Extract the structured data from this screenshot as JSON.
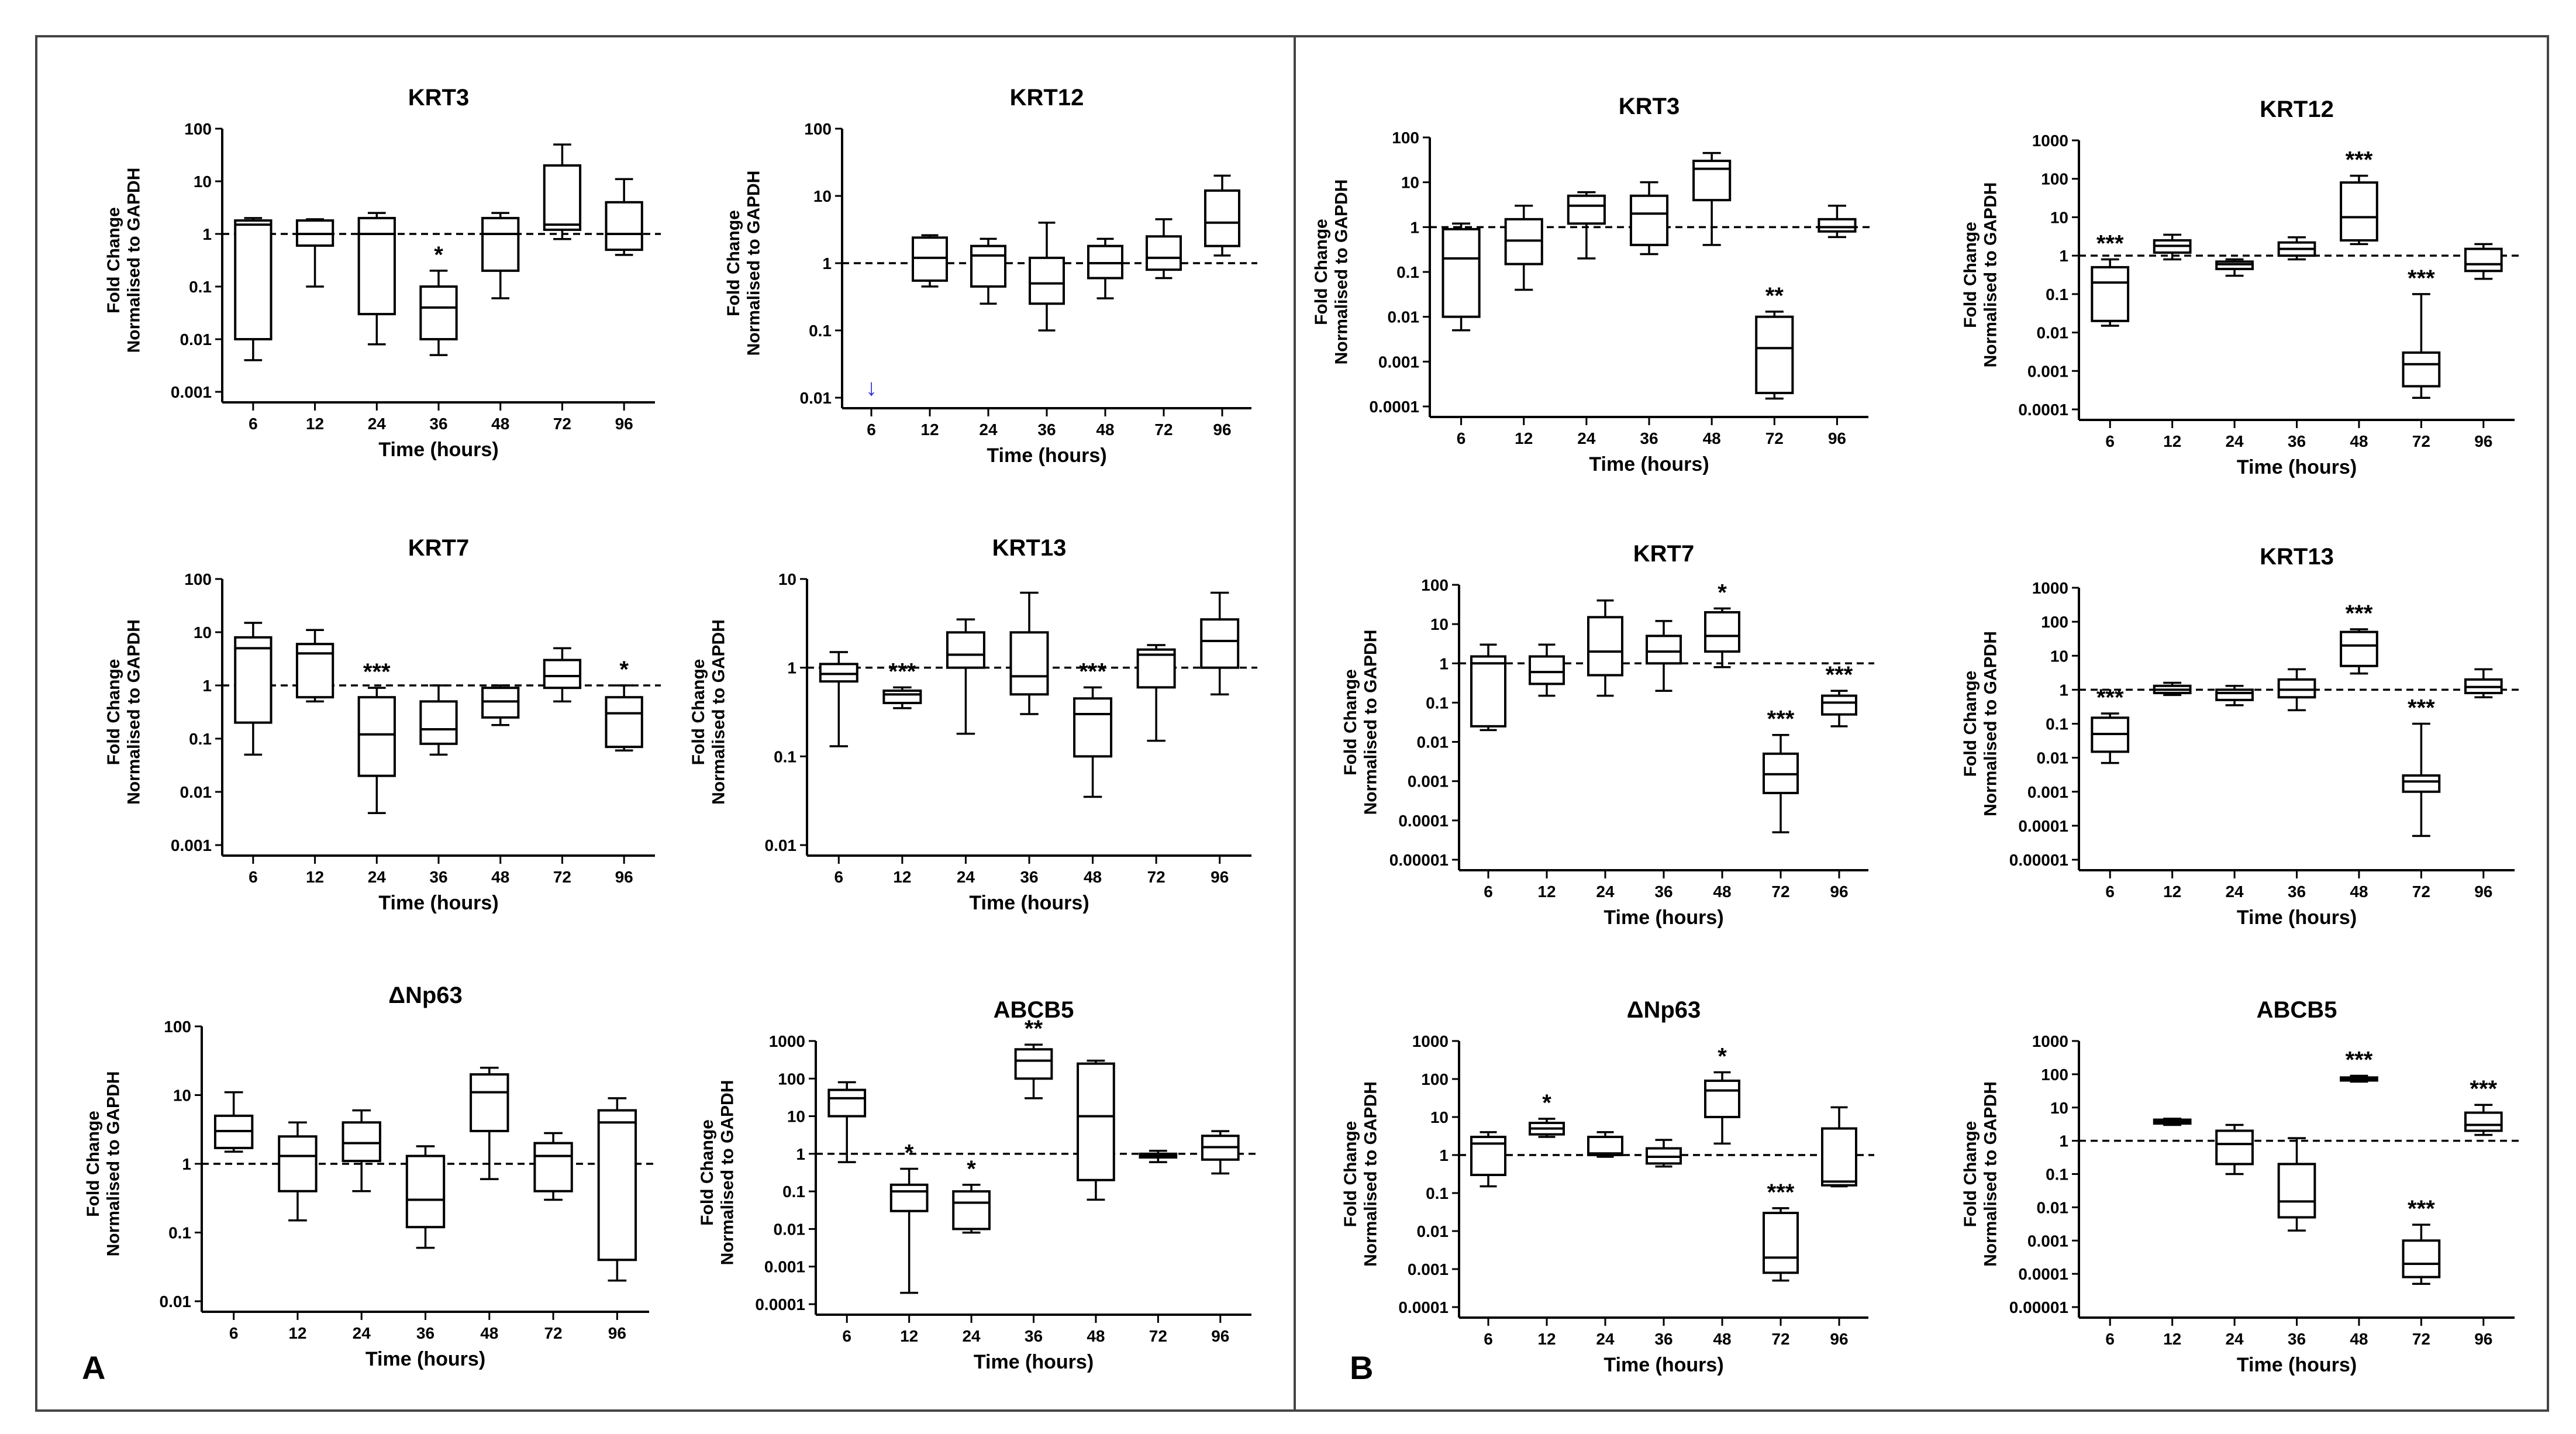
{
  "panels": [
    {
      "letter": "A"
    },
    {
      "letter": "B"
    }
  ],
  "chart_data": [
    {
      "type": "box",
      "panel": "A",
      "title": "KRT3",
      "xlabel": "Time (hours)",
      "ylabel": [
        "Fold Change",
        "Normalised to GAPDH"
      ],
      "yscale": "log",
      "ylim": [
        0.001,
        100
      ],
      "yticks": [
        "0.001",
        "0.01",
        "0.1",
        "1",
        "10",
        "100"
      ],
      "categories": [
        "6",
        "12",
        "24",
        "36",
        "48",
        "72",
        "96"
      ],
      "reference_line": 1,
      "boxes": [
        [
          0.004,
          0.01,
          1.5,
          1.8,
          2
        ],
        [
          0.1,
          0.6,
          1,
          1.8,
          1.9
        ],
        [
          0.008,
          0.03,
          1,
          2,
          2.5
        ],
        [
          0.005,
          0.01,
          0.04,
          0.1,
          0.2
        ],
        [
          0.06,
          0.2,
          1,
          2,
          2.5
        ],
        [
          0.8,
          1.2,
          1.5,
          20,
          50
        ],
        [
          0.4,
          0.5,
          1,
          4,
          11
        ]
      ],
      "significance": [
        "",
        "",
        "",
        "*",
        "",
        "",
        ""
      ],
      "annotations": []
    },
    {
      "type": "box",
      "panel": "A",
      "title": "KRT12",
      "xlabel": "Time (hours)",
      "ylabel": [
        "Fold Change",
        "Normalised to GAPDH"
      ],
      "yscale": "log",
      "ylim": [
        0.01,
        100
      ],
      "yticks": [
        "0.01",
        "0.1",
        "1",
        "10",
        "100"
      ],
      "categories": [
        "6",
        "12",
        "24",
        "36",
        "48",
        "72",
        "96"
      ],
      "reference_line": 1,
      "boxes": [
        null,
        [
          0.45,
          0.55,
          1.2,
          2.4,
          2.6
        ],
        [
          0.25,
          0.45,
          1.3,
          1.8,
          2.3
        ],
        [
          0.1,
          0.25,
          0.5,
          1.2,
          4
        ],
        [
          0.3,
          0.6,
          1,
          1.8,
          2.3
        ],
        [
          0.6,
          0.8,
          1.2,
          2.5,
          4.5
        ],
        [
          1.3,
          1.8,
          4,
          12,
          20
        ]
      ],
      "significance": [
        "",
        "",
        "",
        "",
        "",
        "",
        ""
      ],
      "annotations": [
        {
          "category": "6",
          "symbol": "↓"
        }
      ]
    },
    {
      "type": "box",
      "panel": "A",
      "title": "KRT7",
      "xlabel": "Time (hours)",
      "ylabel": [
        "Fold Change",
        "Normalised to GAPDH"
      ],
      "yscale": "log",
      "ylim": [
        0.001,
        100
      ],
      "yticks": [
        "0.001",
        "0.01",
        "0.1",
        "1",
        "10",
        "100"
      ],
      "categories": [
        "6",
        "12",
        "24",
        "36",
        "48",
        "72",
        "96"
      ],
      "reference_line": 1,
      "boxes": [
        [
          0.05,
          0.2,
          5,
          8,
          15
        ],
        [
          0.5,
          0.6,
          4,
          6,
          11
        ],
        [
          0.004,
          0.02,
          0.12,
          0.6,
          0.9
        ],
        [
          0.05,
          0.08,
          0.15,
          0.5,
          1
        ],
        [
          0.18,
          0.25,
          0.5,
          0.9,
          1
        ],
        [
          0.5,
          0.9,
          1.5,
          3,
          5
        ],
        [
          0.06,
          0.07,
          0.3,
          0.6,
          1
        ]
      ],
      "significance": [
        "",
        "",
        "***",
        "",
        "",
        "",
        "*"
      ],
      "annotations": []
    },
    {
      "type": "box",
      "panel": "A",
      "title": "KRT13",
      "xlabel": "Time (hours)",
      "ylabel": [
        "Fold Change",
        "Normalised to GAPDH"
      ],
      "yscale": "log",
      "ylim": [
        0.01,
        10
      ],
      "yticks": [
        "0.01",
        "0.1",
        "1",
        "10"
      ],
      "categories": [
        "6",
        "12",
        "24",
        "36",
        "48",
        "72",
        "96"
      ],
      "reference_line": 1,
      "boxes": [
        [
          0.13,
          0.7,
          0.85,
          1.1,
          1.5
        ],
        [
          0.35,
          0.4,
          0.5,
          0.55,
          0.6
        ],
        [
          0.18,
          1,
          1.4,
          2.5,
          3.5
        ],
        [
          0.3,
          0.5,
          0.8,
          2.5,
          7
        ],
        [
          0.035,
          0.1,
          0.3,
          0.45,
          0.6
        ],
        [
          0.15,
          0.6,
          1.4,
          1.6,
          1.8
        ],
        [
          0.5,
          1,
          2,
          3.5,
          7
        ]
      ],
      "significance": [
        "",
        "***",
        "",
        "",
        "***",
        "",
        ""
      ],
      "annotations": []
    },
    {
      "type": "box",
      "panel": "A",
      "title": "ΔNp63",
      "xlabel": "Time (hours)",
      "ylabel": [
        "Fold Change",
        "Normalised to GAPDH"
      ],
      "yscale": "log",
      "ylim": [
        0.01,
        100
      ],
      "yticks": [
        "0.01",
        "0.1",
        "1",
        "10",
        "100"
      ],
      "categories": [
        "6",
        "12",
        "24",
        "36",
        "48",
        "72",
        "96"
      ],
      "reference_line": 1,
      "boxes": [
        [
          1.5,
          1.7,
          3,
          5,
          11
        ],
        [
          0.15,
          0.4,
          1.3,
          2.5,
          4
        ],
        [
          0.4,
          1.1,
          2,
          4,
          6
        ],
        [
          0.06,
          0.12,
          0.3,
          1.3,
          1.8
        ],
        [
          0.6,
          3,
          11,
          20,
          25
        ],
        [
          0.3,
          0.4,
          1.3,
          2,
          2.8
        ],
        [
          0.02,
          0.04,
          4,
          6,
          9
        ]
      ],
      "significance": [
        "",
        "",
        "",
        "",
        "",
        "",
        ""
      ],
      "annotations": []
    },
    {
      "type": "box",
      "panel": "A",
      "title": "ABCB5",
      "xlabel": "Time (hours)",
      "ylabel": [
        "Fold Change",
        "Normalised to GAPDH"
      ],
      "yscale": "log",
      "ylim": [
        0.0001,
        1000
      ],
      "yticks": [
        "0.0001",
        "0.001",
        "0.01",
        "0.1",
        "1",
        "10",
        "100",
        "1000"
      ],
      "categories": [
        "6",
        "12",
        "24",
        "36",
        "48",
        "72",
        "96"
      ],
      "reference_line": 1,
      "boxes": [
        [
          0.6,
          10,
          30,
          50,
          80
        ],
        [
          0.0002,
          0.03,
          0.1,
          0.15,
          0.4
        ],
        [
          0.008,
          0.01,
          0.05,
          0.1,
          0.15
        ],
        [
          30,
          100,
          300,
          600,
          800
        ],
        [
          0.06,
          0.2,
          10,
          250,
          300
        ],
        [
          0.6,
          0.8,
          0.9,
          1,
          1.2
        ],
        [
          0.3,
          0.7,
          1.5,
          3,
          4
        ]
      ],
      "significance": [
        "",
        "*",
        "*",
        "**",
        "",
        "",
        ""
      ],
      "annotations": []
    },
    {
      "type": "box",
      "panel": "B",
      "title": "KRT3",
      "xlabel": "Time (hours)",
      "ylabel": [
        "Fold Change",
        "Normalised to GAPDH"
      ],
      "yscale": "log",
      "ylim": [
        0.0001,
        100
      ],
      "yticks": [
        "0.0001",
        "0.001",
        "0.01",
        "0.1",
        "1",
        "10",
        "100"
      ],
      "categories": [
        "6",
        "12",
        "24",
        "36",
        "48",
        "72",
        "96"
      ],
      "reference_line": 1,
      "boxes": [
        [
          0.005,
          0.01,
          0.2,
          0.9,
          1.2
        ],
        [
          0.04,
          0.15,
          0.5,
          1.5,
          3
        ],
        [
          0.2,
          1.2,
          3,
          5,
          6
        ],
        [
          0.25,
          0.4,
          2,
          5,
          10
        ],
        [
          0.4,
          4,
          20,
          30,
          45
        ],
        [
          0.00015,
          0.0002,
          0.002,
          0.01,
          0.013
        ],
        [
          0.6,
          0.8,
          1,
          1.5,
          3
        ]
      ],
      "significance": [
        "",
        "",
        "",
        "",
        "",
        "**",
        ""
      ],
      "annotations": []
    },
    {
      "type": "box",
      "panel": "B",
      "title": "KRT12",
      "xlabel": "Time (hours)",
      "ylabel": [
        "Fold Change",
        "Normalised to GAPDH"
      ],
      "yscale": "log",
      "ylim": [
        0.0001,
        1000
      ],
      "yticks": [
        "0.0001",
        "0.001",
        "0.01",
        "0.1",
        "1",
        "10",
        "100",
        "1000"
      ],
      "categories": [
        "6",
        "12",
        "24",
        "36",
        "48",
        "72",
        "96"
      ],
      "reference_line": 1,
      "boxes": [
        [
          0.015,
          0.02,
          0.2,
          0.5,
          0.8
        ],
        [
          0.8,
          1.2,
          1.8,
          2.5,
          3.5
        ],
        [
          0.3,
          0.45,
          0.6,
          0.7,
          0.8
        ],
        [
          0.8,
          1,
          1.5,
          2.2,
          3
        ],
        [
          2,
          2.5,
          10,
          80,
          120
        ],
        [
          0.0002,
          0.0004,
          0.0015,
          0.003,
          0.1
        ],
        [
          0.25,
          0.4,
          0.6,
          1.5,
          2
        ]
      ],
      "significance": [
        "***",
        "",
        "",
        "",
        "***",
        "***",
        ""
      ],
      "annotations": []
    },
    {
      "type": "box",
      "panel": "B",
      "title": "KRT7",
      "xlabel": "Time (hours)",
      "ylabel": [
        "Fold Change",
        "Normalised to GAPDH"
      ],
      "yscale": "log",
      "ylim": [
        1e-05,
        100
      ],
      "yticks": [
        "0.00001",
        "0.0001",
        "0.001",
        "0.01",
        "0.1",
        "1",
        "10",
        "100"
      ],
      "categories": [
        "6",
        "12",
        "24",
        "36",
        "48",
        "72",
        "96"
      ],
      "reference_line": 1,
      "boxes": [
        [
          0.02,
          0.025,
          1,
          1.5,
          3
        ],
        [
          0.15,
          0.3,
          0.6,
          1.5,
          3
        ],
        [
          0.15,
          0.5,
          2,
          15,
          40
        ],
        [
          0.2,
          1,
          2,
          5,
          12
        ],
        [
          0.8,
          2,
          5,
          20,
          25
        ],
        [
          5e-05,
          0.0005,
          0.0015,
          0.005,
          0.015
        ],
        [
          0.025,
          0.05,
          0.1,
          0.15,
          0.2
        ]
      ],
      "significance": [
        "",
        "",
        "",
        "",
        "*",
        "***",
        "***"
      ],
      "annotations": []
    },
    {
      "type": "box",
      "panel": "B",
      "title": "KRT13",
      "xlabel": "Time (hours)",
      "ylabel": [
        "Fold Change",
        "Normalised to GAPDH"
      ],
      "yscale": "log",
      "ylim": [
        1e-05,
        1000
      ],
      "yticks": [
        "0.00001",
        "0.0001",
        "0.001",
        "0.01",
        "0.1",
        "1",
        "10",
        "100",
        "1000"
      ],
      "categories": [
        "6",
        "12",
        "24",
        "36",
        "48",
        "72",
        "96"
      ],
      "reference_line": 1,
      "boxes": [
        [
          0.007,
          0.015,
          0.05,
          0.15,
          0.2
        ],
        [
          0.7,
          0.8,
          1,
          1.3,
          1.6
        ],
        [
          0.35,
          0.5,
          0.8,
          1,
          1.3
        ],
        [
          0.25,
          0.6,
          1,
          2,
          4
        ],
        [
          3,
          5,
          20,
          50,
          60
        ],
        [
          5e-05,
          0.001,
          0.002,
          0.003,
          0.1
        ],
        [
          0.6,
          0.8,
          1.2,
          2,
          4
        ]
      ],
      "significance": [
        "***",
        "",
        "",
        "",
        "***",
        "***",
        ""
      ],
      "annotations": []
    },
    {
      "type": "box",
      "panel": "B",
      "title": "ΔNp63",
      "xlabel": "Time (hours)",
      "ylabel": [
        "Fold Change",
        "Normalised to GAPDH"
      ],
      "yscale": "log",
      "ylim": [
        0.0001,
        1000
      ],
      "yticks": [
        "0.0001",
        "0.001",
        "0.01",
        "0.1",
        "1",
        "10",
        "100",
        "1000"
      ],
      "categories": [
        "6",
        "12",
        "24",
        "36",
        "48",
        "72",
        "96"
      ],
      "reference_line": 1,
      "boxes": [
        [
          0.15,
          0.3,
          2,
          3,
          4
        ],
        [
          3,
          3.5,
          5,
          7,
          9
        ],
        [
          0.9,
          1,
          1.1,
          3,
          4
        ],
        [
          0.5,
          0.6,
          0.9,
          1.5,
          2.5
        ],
        [
          2,
          10,
          50,
          90,
          150
        ],
        [
          0.0005,
          0.0008,
          0.002,
          0.03,
          0.04
        ],
        [
          0.15,
          0.16,
          0.2,
          5,
          18
        ]
      ],
      "significance": [
        "",
        "*",
        "",
        "",
        "*",
        "***",
        ""
      ],
      "annotations": []
    },
    {
      "type": "box",
      "panel": "B",
      "title": "ABCB5",
      "xlabel": "Time (hours)",
      "ylabel": [
        "Fold Change",
        "Normalised to GAPDH"
      ],
      "yscale": "log",
      "ylim": [
        1e-05,
        1000
      ],
      "yticks": [
        "0.00001",
        "0.0001",
        "0.001",
        "0.01",
        "0.1",
        "1",
        "10",
        "100",
        "1000"
      ],
      "categories": [
        "6",
        "12",
        "24",
        "36",
        "48",
        "72",
        "96"
      ],
      "reference_line": 1,
      "boxes": [
        null,
        [
          3,
          3.3,
          3.8,
          4.3,
          4.6
        ],
        [
          0.1,
          0.2,
          0.8,
          2,
          3
        ],
        [
          0.002,
          0.005,
          0.015,
          0.2,
          1.2
        ],
        [
          60,
          65,
          70,
          80,
          90
        ],
        [
          5e-05,
          8e-05,
          0.0002,
          0.001,
          0.003
        ],
        [
          1.5,
          2,
          3,
          7,
          12
        ]
      ],
      "significance": [
        "",
        "",
        "",
        "",
        "***",
        "***",
        "***"
      ],
      "annotations": []
    }
  ]
}
